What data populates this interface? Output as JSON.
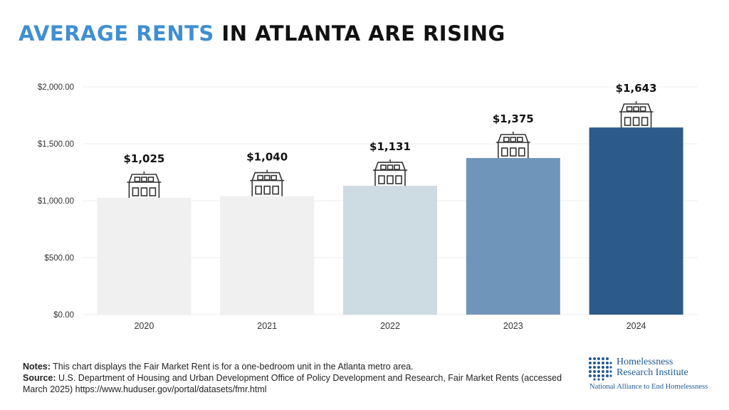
{
  "title": {
    "accent": "AVERAGE RENTS",
    "rest": "IN ATLANTA ARE RISING"
  },
  "colors": {
    "title_accent": "#3f8fd2",
    "bars": [
      "#f0f0f0",
      "#f0f0f0",
      "#cddbe3",
      "#7095bb",
      "#2c5b8a"
    ],
    "house_stroke": "#333333",
    "logo": "#1f5a92"
  },
  "chart_data": {
    "type": "bar",
    "title": "AVERAGE RENTS IN ATLANTA ARE RISING",
    "categories": [
      "2020",
      "2021",
      "2022",
      "2023",
      "2024"
    ],
    "values": [
      1025,
      1040,
      1131,
      1375,
      1643
    ],
    "data_labels": [
      "$1,025",
      "$1,040",
      "$1,131",
      "$1,375",
      "$1,643"
    ],
    "y_ticks": [
      0,
      500,
      1000,
      1500,
      2000
    ],
    "y_tick_labels": [
      "$0.00",
      "$500.00",
      "$1,000.00",
      "$1,500.00",
      "$2,000.00"
    ],
    "ylim": [
      0,
      2000
    ],
    "xlabel": "",
    "ylabel": "",
    "grid": true,
    "legend": "none",
    "icon": "house-icon"
  },
  "notes": {
    "notes_label": "Notes:",
    "notes_text": " This chart displays the Fair Market Rent is for a one-bedroom unit in the Atlanta metro area.",
    "source_label": "Source:",
    "source_text": " U.S. Department of Housing and Urban Development Office of Policy Development and Research, Fair Market Rents (accessed March 2025) https://www.huduser.gov/portal/datasets/fmr.html"
  },
  "logo": {
    "line1": "Homelessness",
    "line2": "Research Institute",
    "tagline": "National Alliance to End Homelessness"
  }
}
